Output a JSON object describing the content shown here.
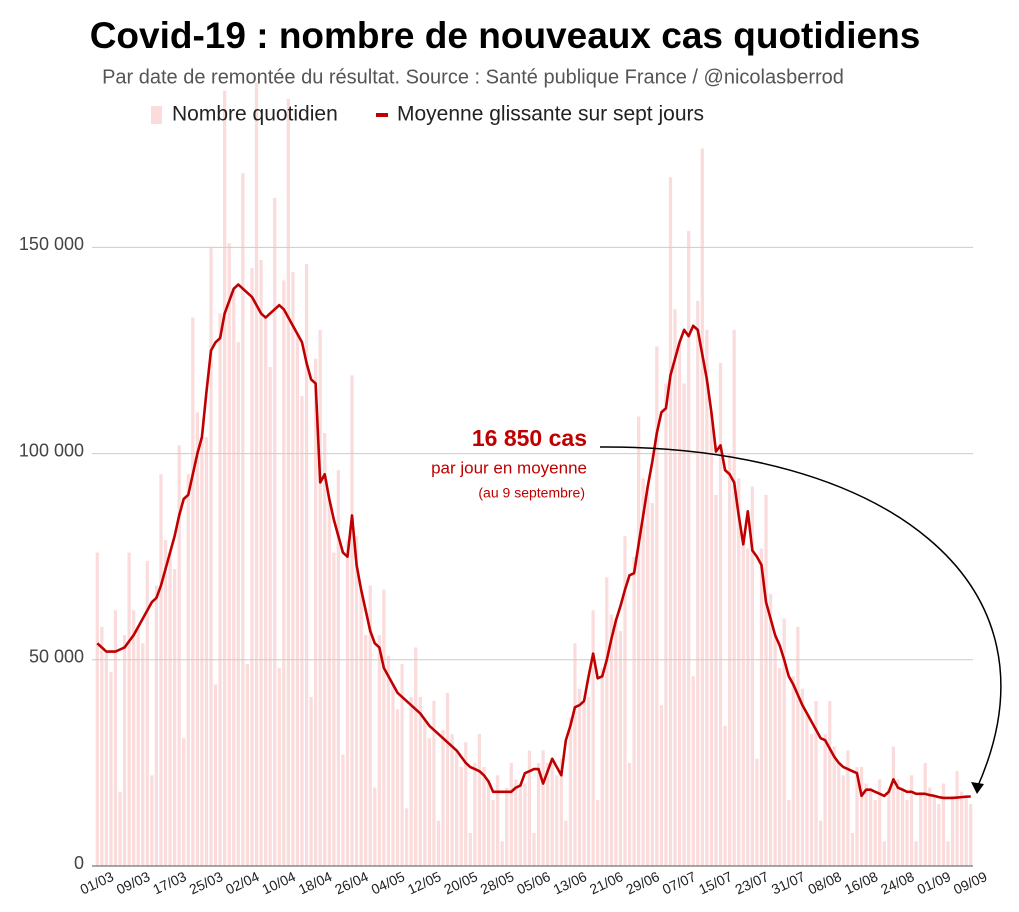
{
  "chart_data": {
    "type": "bar_line",
    "title": "Covid-19 : nombre de nouveaux cas quotidiens",
    "subtitle": "Par date de remontée du résultat. Source : Santé publique France / @nicolasberrod",
    "annotations": [
      "16 850 cas",
      "par jour en moyenne",
      "(au 9 septembre)"
    ],
    "categories": [
      "01/03",
      null,
      null,
      null,
      null,
      null,
      null,
      null,
      "09/03",
      null,
      null,
      null,
      null,
      null,
      null,
      null,
      "17/03",
      null,
      null,
      null,
      null,
      null,
      null,
      null,
      "25/03",
      null,
      null,
      null,
      null,
      null,
      null,
      null,
      "02/04",
      null,
      null,
      null,
      null,
      null,
      null,
      null,
      "10/04",
      null,
      null,
      null,
      null,
      null,
      null,
      null,
      "18/04",
      null,
      null,
      null,
      null,
      null,
      null,
      null,
      "26/04",
      null,
      null,
      null,
      null,
      null,
      null,
      null,
      "04/05",
      null,
      null,
      null,
      null,
      null,
      null,
      null,
      "12/05",
      null,
      null,
      null,
      null,
      null,
      null,
      null,
      "20/05",
      null,
      null,
      null,
      null,
      null,
      null,
      null,
      "28/05",
      null,
      null,
      null,
      null,
      null,
      null,
      null,
      "05/06",
      null,
      null,
      null,
      null,
      null,
      null,
      null,
      "13/06",
      null,
      null,
      null,
      null,
      null,
      null,
      null,
      "21/06",
      null,
      null,
      null,
      null,
      null,
      null,
      null,
      "29/06",
      null,
      null,
      null,
      null,
      null,
      null,
      null,
      "07/07",
      null,
      null,
      null,
      null,
      null,
      null,
      null,
      "15/07",
      null,
      null,
      null,
      null,
      null,
      null,
      null,
      "23/07",
      null,
      null,
      null,
      null,
      null,
      null,
      null,
      "31/07",
      null,
      null,
      null,
      null,
      null,
      null,
      null,
      "08/08",
      null,
      null,
      null,
      null,
      null,
      null,
      null,
      "16/08",
      null,
      null,
      null,
      null,
      null,
      null,
      null,
      "24/08",
      null,
      null,
      null,
      null,
      null,
      null,
      null,
      "01/09",
      null,
      null,
      null,
      null,
      null,
      null,
      null,
      "09/09"
    ],
    "series": [
      {
        "name": "Nombre quotidien",
        "kind": "bar",
        "color": "#fbdcdc",
        "values": [
          76000,
          58000,
          52000,
          47000,
          62000,
          18000,
          56000,
          76000,
          62000,
          58000,
          54000,
          74000,
          22000,
          68000,
          95000,
          79000,
          76000,
          72000,
          102000,
          31000,
          95000,
          133000,
          110000,
          104000,
          104000,
          150000,
          44000,
          134000,
          188000,
          151000,
          140000,
          127000,
          168000,
          49000,
          145000,
          190000,
          147000,
          133000,
          121000,
          162000,
          48000,
          142000,
          186000,
          144000,
          129000,
          114000,
          146000,
          41000,
          123000,
          130000,
          105000,
          89000,
          76000,
          96000,
          27000,
          79000,
          119000,
          80000,
          67000,
          56000,
          68000,
          19000,
          56000,
          67000,
          51000,
          44000,
          38000,
          49000,
          14000,
          41000,
          53000,
          41000,
          36000,
          31000,
          40000,
          11000,
          33000,
          42000,
          32000,
          28000,
          24000,
          30000,
          8000,
          25000,
          32000,
          24000,
          21000,
          16000,
          22000,
          6000,
          19000,
          25000,
          21000,
          20000,
          20000,
          28000,
          8000,
          25000,
          28000,
          25000,
          26000,
          22000,
          26000,
          11000,
          36000,
          54000,
          43000,
          40000,
          41000,
          62000,
          16000,
          48000,
          70000,
          61000,
          60000,
          57000,
          80000,
          25000,
          75000,
          109000,
          94000,
          92000,
          88000,
          126000,
          39000,
          117000,
          167000,
          135000,
          127000,
          117000,
          154000,
          46000,
          137000,
          174000,
          130000,
          110000,
          90000,
          122000,
          34000,
          100000,
          130000,
          94000,
          78000,
          77000,
          92000,
          26000,
          77000,
          90000,
          66000,
          56000,
          48000,
          60000,
          16000,
          46000,
          58000,
          43000,
          37000,
          32000,
          40000,
          11000,
          32000,
          40000,
          29000,
          25000,
          22000,
          28000,
          8000,
          24000,
          24000,
          20000,
          19000,
          16000,
          21000,
          6000,
          19000,
          29000,
          21000,
          19000,
          16000,
          22000,
          6000,
          18000,
          25000,
          19000,
          17000,
          15000,
          20000,
          6000,
          17000,
          23000,
          18000,
          17000,
          15000
        ]
      },
      {
        "name": "Moyenne glissante sur sept jours",
        "kind": "line",
        "color": "#c00000",
        "values": [
          54000,
          53000,
          52000,
          52000,
          52000,
          52500,
          53000,
          54500,
          56000,
          58000,
          60000,
          62000,
          64000,
          65000,
          68000,
          72000,
          76000,
          80000,
          85000,
          89000,
          90000,
          95000,
          100000,
          104000,
          115000,
          125000,
          127000,
          128000,
          134000,
          137000,
          140000,
          141000,
          140000,
          139000,
          138000,
          136000,
          134000,
          133000,
          134000,
          135000,
          136000,
          135000,
          133000,
          131000,
          129000,
          127000,
          122000,
          118000,
          117000,
          93000,
          95000,
          89000,
          84000,
          80000,
          76000,
          75000,
          85000,
          73000,
          67000,
          62000,
          57000,
          54000,
          53000,
          48000,
          46000,
          44000,
          42000,
          41000,
          40000,
          39000,
          38000,
          37000,
          35500,
          34000,
          33000,
          32000,
          31000,
          30000,
          29000,
          28000,
          26500,
          25000,
          24000,
          23500,
          23000,
          22000,
          20500,
          18000,
          18000,
          18000,
          18000,
          18000,
          19000,
          19500,
          22500,
          23000,
          23500,
          23500,
          20000,
          23000,
          26000,
          24000,
          22000,
          30500,
          34000,
          38500,
          39000,
          40000,
          46000,
          51500,
          45500,
          46000,
          50000,
          55000,
          59500,
          63000,
          67000,
          70500,
          71000,
          78000,
          85000,
          92000,
          98000,
          105000,
          110000,
          111000,
          119000,
          123000,
          127000,
          130000,
          128500,
          131000,
          130000,
          124000,
          118000,
          110000,
          100500,
          102000,
          96000,
          95000,
          93000,
          85000,
          78000,
          86000,
          76500,
          75000,
          73000,
          64000,
          60000,
          56000,
          53500,
          50000,
          46000,
          44000,
          41500,
          39000,
          37000,
          35000,
          33000,
          31000,
          30500,
          28500,
          26500,
          25000,
          24000,
          23500,
          23000,
          22500,
          17000,
          18500,
          18500,
          18000,
          17500,
          17000,
          18000,
          21000,
          19000,
          18500,
          18000,
          18000,
          17500,
          17500,
          17500,
          17200,
          17000,
          16700,
          16500,
          16500,
          16500,
          16600,
          16700,
          16800,
          16850
        ]
      }
    ],
    "ylim": [
      0,
      210000
    ],
    "yticks": [
      0,
      {
        "value": 50000,
        "label": "50 000"
      },
      {
        "value": 100000,
        "label": "100 000"
      },
      {
        "value": 150000,
        "label": "150 000"
      }
    ],
    "grid": true
  }
}
